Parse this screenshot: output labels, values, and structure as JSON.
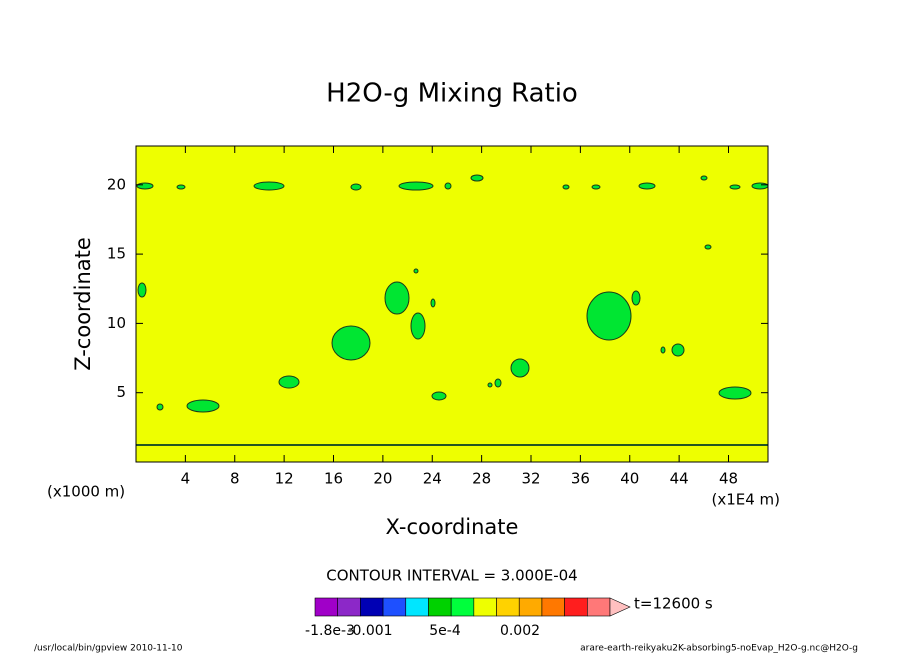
{
  "chart_data": {
    "type": "contour",
    "title": "H2O-g Mixing Ratio",
    "x_label": "X-coordinate",
    "y_label": "Z-coordinate",
    "x_unit": "(x1E4 m)",
    "y_unit": "(x1000 m)",
    "xlim": [
      0,
      51.2
    ],
    "ylim": [
      0,
      22.8
    ],
    "xticks": [
      4,
      8,
      12,
      16,
      20,
      24,
      28,
      32,
      36,
      40,
      44,
      48
    ],
    "yticks": [
      5,
      10,
      15,
      20
    ],
    "contour_interval": "CONTOUR INTERVAL = 3.000E-04",
    "time_label": "t=12600 s",
    "colorbar": {
      "colors": [
        "#a000c8",
        "#8c28c8",
        "#0000b4",
        "#1e50ff",
        "#00e6ff",
        "#00d200",
        "#00ff3c",
        "#eeff00",
        "#ffd200",
        "#ffaa00",
        "#ff7800",
        "#ff1e1e",
        "#ff7878",
        "#ffc0c0"
      ],
      "lim": [
        -0.0021,
        0.0042
      ],
      "ticks": [
        {
          "value": -0.0018,
          "label": "-1.8e-3"
        },
        {
          "value": -0.001,
          "label": "-0.001"
        },
        {
          "value": 0.0005,
          "label": "5e-4"
        },
        {
          "value": 0.002,
          "label": "0.002"
        }
      ]
    },
    "footer_left": "/usr/local/bin/gpview  2010-11-10",
    "footer_right": "arare-earth-reikyaku2K-absorbing5-noEvap_H2O-g.nc@H2O-g"
  }
}
